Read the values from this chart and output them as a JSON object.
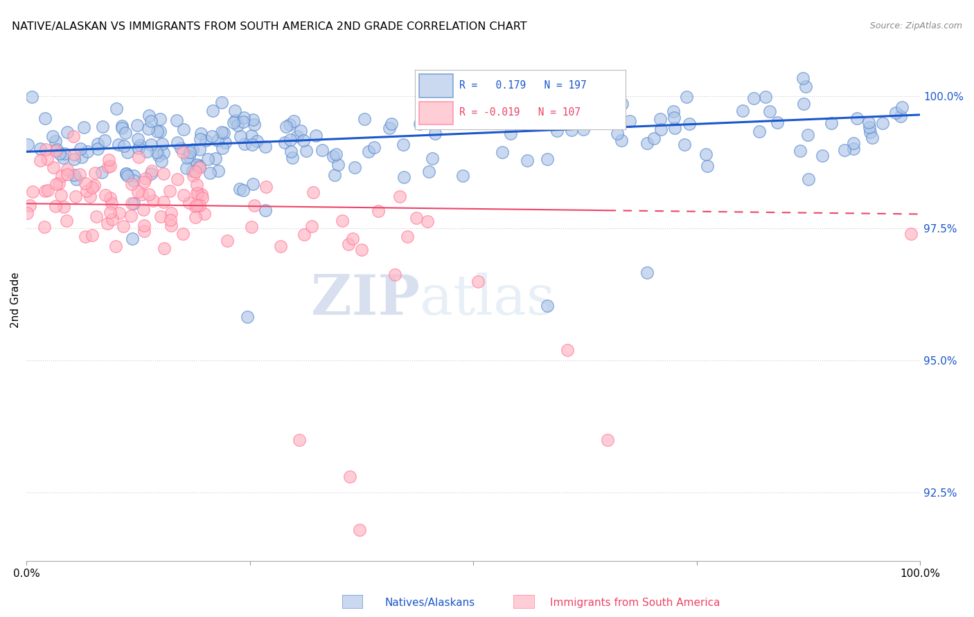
{
  "title": "NATIVE/ALASKAN VS IMMIGRANTS FROM SOUTH AMERICA 2ND GRADE CORRELATION CHART",
  "source": "Source: ZipAtlas.com",
  "ylabel": "2nd Grade",
  "xlim": [
    0.0,
    100.0
  ],
  "ylim": [
    91.2,
    101.1
  ],
  "ytick_values": [
    92.5,
    95.0,
    97.5,
    100.0
  ],
  "blue_N": 197,
  "pink_N": 107,
  "blue_color": "#AEC6E8",
  "pink_color": "#FFB3C1",
  "blue_edge_color": "#5588CC",
  "pink_edge_color": "#FF7799",
  "blue_line_color": "#1A56CC",
  "pink_line_color": "#EE4466",
  "watermark_zip": "ZIP",
  "watermark_atlas": "atlas",
  "legend_label_blue": "Natives/Alaskans",
  "legend_label_pink": "Immigrants from South America",
  "title_fontsize": 11.5,
  "source_fontsize": 9,
  "dot_size": 160,
  "blue_line_start_y": 98.95,
  "blue_line_end_y": 99.65,
  "pink_line_y": 97.97,
  "pink_solid_end_x": 65.0,
  "pink_line_slope": -0.002
}
